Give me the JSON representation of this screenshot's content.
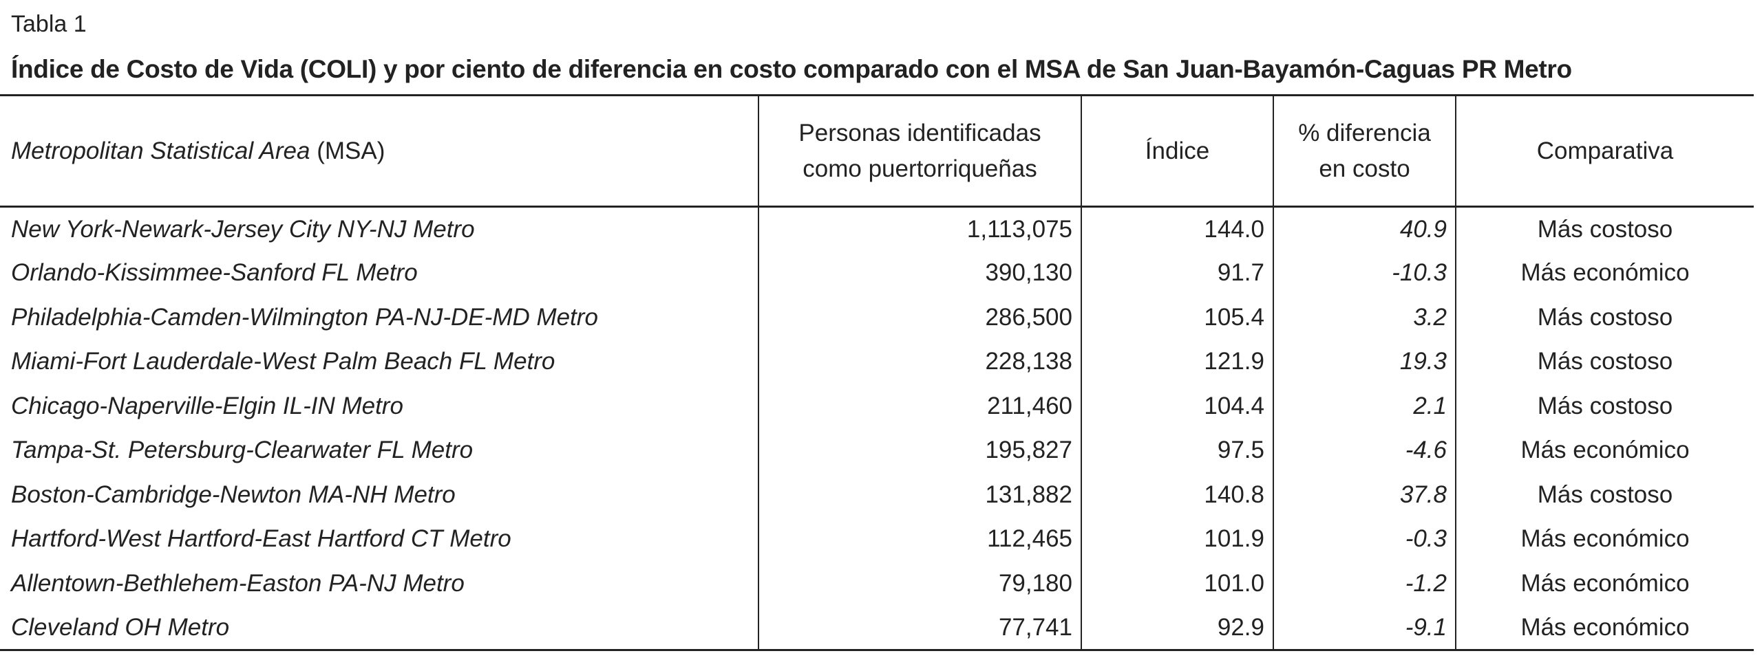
{
  "caption": "Tabla 1",
  "title": "Índice de Costo de Vida (COLI) y por ciento de diferencia en costo comparado con el MSA de San Juan-Bayamón-Caguas PR Metro",
  "table": {
    "header": [
      {
        "italic": "Metropolitan Statistical Area",
        "plain": "(MSA)"
      },
      [
        "Personas identificadas",
        "como puertorriqueñas"
      ],
      [
        "Índice"
      ],
      [
        "% diferencia",
        "en costo"
      ],
      [
        "Comparativa"
      ]
    ],
    "rows": [
      [
        "New York-Newark-Jersey City NY-NJ Metro",
        "1,113,075",
        "144.0",
        "40.9",
        "Más costoso"
      ],
      [
        "Orlando-Kissimmee-Sanford FL Metro",
        "390,130",
        "91.7",
        "-10.3",
        "Más económico"
      ],
      [
        "Philadelphia-Camden-Wilmington PA-NJ-DE-MD Metro",
        "286,500",
        "105.4",
        "3.2",
        "Más costoso"
      ],
      [
        "Miami-Fort Lauderdale-West Palm Beach FL Metro",
        "228,138",
        "121.9",
        "19.3",
        "Más costoso"
      ],
      [
        "Chicago-Naperville-Elgin IL-IN Metro",
        "211,460",
        "104.4",
        "2.1",
        "Más costoso"
      ],
      [
        "Tampa-St. Petersburg-Clearwater FL Metro",
        "195,827",
        "97.5",
        "-4.6",
        "Más económico"
      ],
      [
        "Boston-Cambridge-Newton MA-NH Metro",
        "131,882",
        "140.8",
        "37.8",
        "Más costoso"
      ],
      [
        "Hartford-West Hartford-East Hartford CT Metro",
        "112,465",
        "101.9",
        "-0.3",
        "Más económico"
      ],
      [
        "Allentown-Bethlehem-Easton PA-NJ Metro",
        "79,180",
        "101.0",
        "-1.2",
        "Más económico"
      ],
      [
        "Cleveland OH Metro",
        "77,741",
        "92.9",
        "-9.1",
        "Más económico"
      ]
    ]
  }
}
